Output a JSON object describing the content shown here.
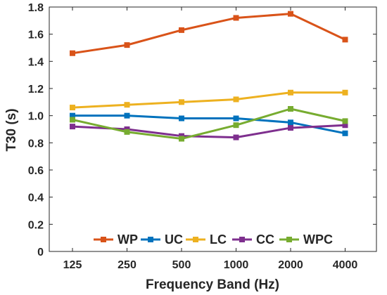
{
  "chart_data": {
    "type": "line",
    "xlabel": "Frequency Band (Hz)",
    "ylabel": "T30 (s)",
    "categories": [
      "125",
      "250",
      "500",
      "1000",
      "2000",
      "4000"
    ],
    "ylim": [
      0,
      1.8
    ],
    "yticks": [
      "0",
      "0.2",
      "0.4",
      "0.6",
      "0.8",
      "1.0",
      "1.2",
      "1.4",
      "1.6",
      "1.8"
    ],
    "ytick_values": [
      0,
      0.2,
      0.4,
      0.6,
      0.8,
      1.0,
      1.2,
      1.4,
      1.6,
      1.8
    ],
    "grid": false,
    "legend_position": "bottom-center",
    "marker": "square",
    "series": [
      {
        "name": "WP",
        "color": "#D95319",
        "values": [
          1.46,
          1.52,
          1.63,
          1.72,
          1.75,
          1.56
        ]
      },
      {
        "name": "UC",
        "color": "#0072BD",
        "values": [
          1.0,
          1.0,
          0.98,
          0.98,
          0.95,
          0.87
        ]
      },
      {
        "name": "LC",
        "color": "#EDB120",
        "values": [
          1.06,
          1.08,
          1.1,
          1.12,
          1.17,
          1.17
        ]
      },
      {
        "name": "CC",
        "color": "#7E2F8E",
        "values": [
          0.92,
          0.9,
          0.85,
          0.84,
          0.91,
          0.93
        ]
      },
      {
        "name": "WPC",
        "color": "#77AC30",
        "values": [
          0.97,
          0.88,
          0.83,
          0.93,
          1.05,
          0.96
        ]
      }
    ]
  }
}
